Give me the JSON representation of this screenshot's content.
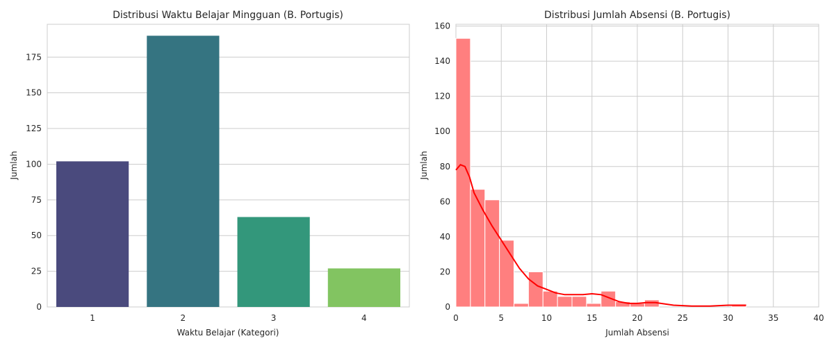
{
  "chart_data": [
    {
      "type": "bar",
      "title": "Distribusi Waktu Belajar Mingguan (B. Portugis)",
      "xlabel": "Waktu Belajar (Kategori)",
      "ylabel": "Jumlah",
      "categories": [
        "1",
        "2",
        "3",
        "4"
      ],
      "values": [
        102,
        190,
        63,
        27
      ],
      "colors": [
        "#4a4a7d",
        "#357481",
        "#33977b",
        "#82c461"
      ],
      "ylim": [
        0,
        198
      ],
      "yticks": [
        0,
        25,
        50,
        75,
        100,
        125,
        150,
        175
      ],
      "grid": "y"
    },
    {
      "type": "histogram",
      "title": "Distribusi Jumlah Absensi (B. Portugis)",
      "xlabel": "Jumlah Absensi",
      "ylabel": "Jumlah",
      "bar_color": "#ff7f7f",
      "kde_color": "#ff0000",
      "bins": [
        {
          "x0": 0,
          "x1": 1.6,
          "count": 153
        },
        {
          "x0": 1.6,
          "x1": 3.2,
          "count": 67
        },
        {
          "x0": 3.2,
          "x1": 4.8,
          "count": 61
        },
        {
          "x0": 4.8,
          "x1": 6.4,
          "count": 38
        },
        {
          "x0": 6.4,
          "x1": 8.0,
          "count": 2
        },
        {
          "x0": 8.0,
          "x1": 9.6,
          "count": 20
        },
        {
          "x0": 9.6,
          "x1": 11.2,
          "count": 9
        },
        {
          "x0": 11.2,
          "x1": 12.8,
          "count": 6
        },
        {
          "x0": 12.8,
          "x1": 14.4,
          "count": 6
        },
        {
          "x0": 14.4,
          "x1": 16.0,
          "count": 2
        },
        {
          "x0": 16.0,
          "x1": 17.6,
          "count": 9
        },
        {
          "x0": 17.6,
          "x1": 19.2,
          "count": 3
        },
        {
          "x0": 19.2,
          "x1": 20.8,
          "count": 2
        },
        {
          "x0": 20.8,
          "x1": 22.4,
          "count": 4
        },
        {
          "x0": 22.4,
          "x1": 24.0,
          "count": 0
        },
        {
          "x0": 24.0,
          "x1": 25.6,
          "count": 0
        },
        {
          "x0": 25.6,
          "x1": 27.2,
          "count": 0
        },
        {
          "x0": 27.2,
          "x1": 28.8,
          "count": 0
        },
        {
          "x0": 28.8,
          "x1": 30.4,
          "count": 0
        },
        {
          "x0": 30.4,
          "x1": 32.0,
          "count": 1
        }
      ],
      "kde": {
        "x": [
          0,
          0.5,
          1,
          1.5,
          2,
          3,
          4,
          5,
          6,
          7,
          8,
          9,
          10,
          11,
          12,
          13,
          14,
          15,
          16,
          17,
          18,
          19,
          20,
          21,
          22,
          24,
          26,
          28,
          30,
          32
        ],
        "y": [
          78,
          81,
          80,
          74,
          65,
          55,
          46,
          38,
          30,
          22,
          16,
          12,
          10,
          8,
          7,
          7,
          7,
          7.5,
          7,
          5,
          3,
          2,
          2,
          2.5,
          2.5,
          1,
          0.5,
          0.5,
          1,
          1
        ]
      },
      "xlim": [
        0,
        40
      ],
      "ylim": [
        0,
        161
      ],
      "xticks": [
        0,
        5,
        10,
        15,
        20,
        25,
        30,
        35,
        40
      ],
      "yticks": [
        0,
        20,
        40,
        60,
        80,
        100,
        120,
        140,
        160
      ],
      "grid": "both"
    }
  ]
}
